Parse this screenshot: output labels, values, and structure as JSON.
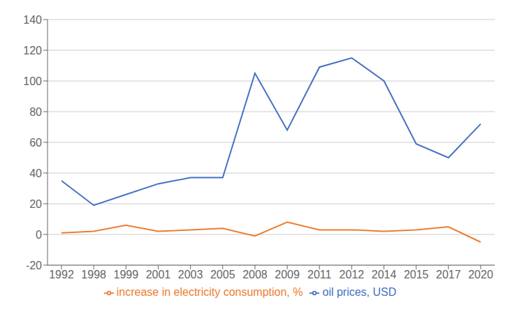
{
  "chart_data": {
    "type": "line",
    "categories": [
      "1992",
      "1998",
      "1999",
      "2001",
      "2003",
      "2005",
      "2008",
      "2009",
      "2011",
      "2012",
      "2014",
      "2015",
      "2017",
      "2020"
    ],
    "series": [
      {
        "name": "oil prices, USD",
        "color": "#4472c4",
        "values": [
          35,
          19,
          26,
          33,
          37,
          37,
          105,
          68,
          109,
          115,
          100,
          59,
          50,
          72
        ]
      },
      {
        "name": "increase in electricity consumption, %",
        "color": "#ed7d31",
        "values": [
          1,
          2,
          6,
          2,
          3,
          4,
          -1,
          8,
          3,
          3,
          2,
          3,
          5,
          -5
        ]
      }
    ],
    "ylim": [
      -20,
      140
    ],
    "yticks": [
      -20,
      0,
      20,
      40,
      60,
      80,
      100,
      120,
      140
    ],
    "grid": true,
    "legend": "bottom"
  }
}
